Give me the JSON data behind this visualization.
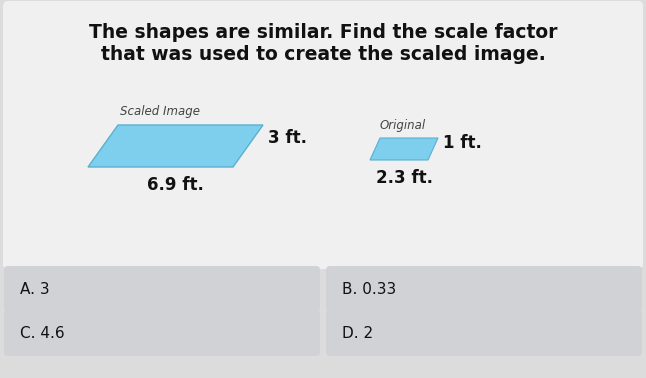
{
  "title_line1": "The shapes are similar. Find the scale factor",
  "title_line2": "that was used to create the scaled image.",
  "bg_color": "#dcdcdc",
  "question_bg": "#f0f0f0",
  "button_bg": "#d0d2d6",
  "parallelogram_color": "#7ecfed",
  "parallelogram_stroke": "#5ab0d0",
  "scaled_label": "Scaled Image",
  "scaled_side": "3 ft.",
  "scaled_bottom": "6.9 ft.",
  "original_label": "Original",
  "original_side": "1 ft.",
  "original_bottom": "2.3 ft.",
  "options": [
    "A. 3",
    "B. 0.33",
    "C. 4.6",
    "D. 2"
  ],
  "title_fontsize": 13.5,
  "label_fontsize": 8.5,
  "measure_fontsize": 12,
  "option_fontsize": 11,
  "fig_width": 6.46,
  "fig_height": 3.78
}
